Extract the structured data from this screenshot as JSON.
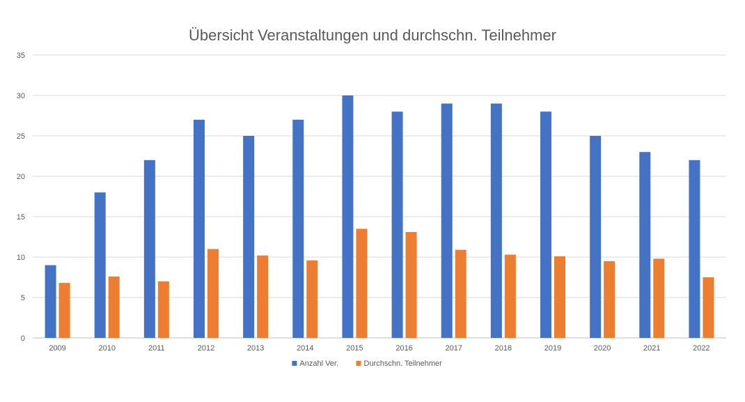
{
  "chart_data": {
    "type": "bar",
    "title": "Übersicht Veranstaltungen und durchschn. Teilnehmer",
    "xlabel": "",
    "ylabel": "",
    "ylim": [
      0,
      35
    ],
    "yticks": [
      0,
      5,
      10,
      15,
      20,
      25,
      30,
      35
    ],
    "grid": true,
    "legend_position": "bottom",
    "categories": [
      "2009",
      "2010",
      "2011",
      "2012",
      "2013",
      "2014",
      "2015",
      "2016",
      "2017",
      "2018",
      "2019",
      "2020",
      "2021",
      "2022"
    ],
    "series": [
      {
        "name": "Anzahl Ver.",
        "color": "#4472C4",
        "values": [
          9,
          18,
          22,
          27,
          25,
          27,
          30,
          28,
          29,
          29,
          28,
          25,
          23,
          22
        ]
      },
      {
        "name": "Durchschn. Teilnehmer",
        "color": "#ED7D31",
        "values": [
          6.8,
          7.6,
          7.0,
          11.0,
          10.2,
          9.6,
          13.5,
          13.1,
          10.9,
          10.3,
          10.1,
          9.5,
          9.8,
          7.5
        ]
      }
    ]
  }
}
